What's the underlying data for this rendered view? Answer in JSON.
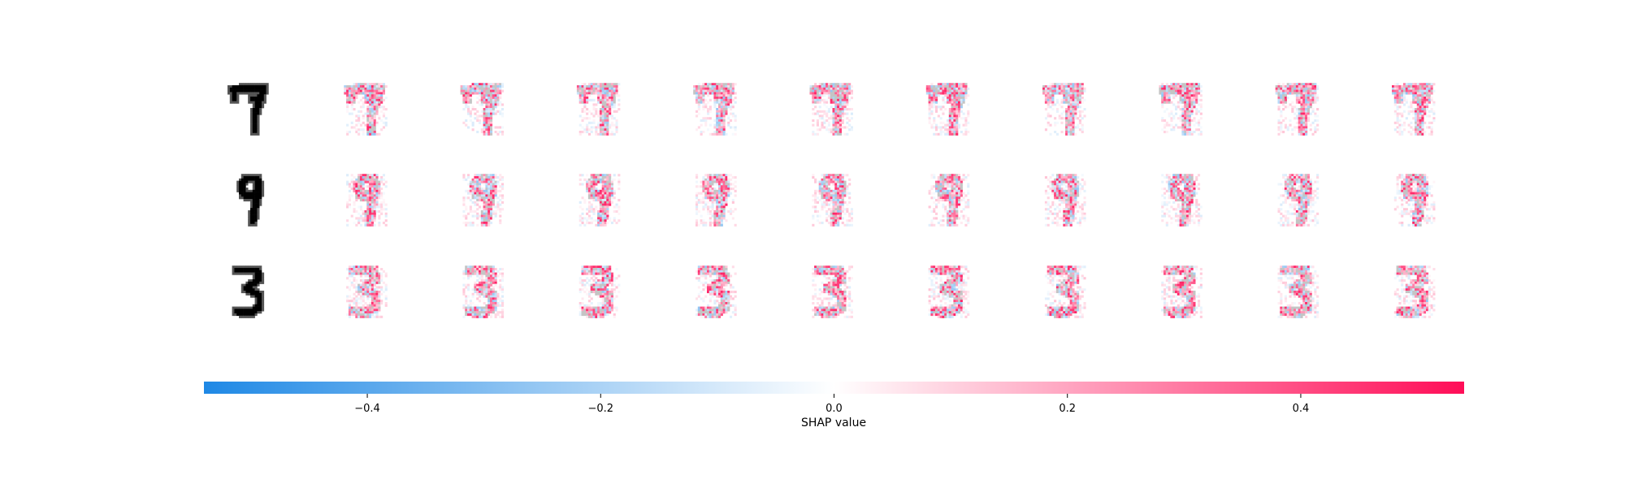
{
  "chart_data": {
    "type": "heatmap",
    "title": "",
    "rows": [
      {
        "digit": "7",
        "input_color": "#000000"
      },
      {
        "digit": "9",
        "input_color": "#000000"
      },
      {
        "digit": "3",
        "input_color": "#000000"
      }
    ],
    "explanation_columns": 10,
    "colorbar": {
      "label": "SHAP value",
      "range": [
        -0.54,
        0.54
      ],
      "ticks": [
        {
          "value": -0.4,
          "label": "−0.4"
        },
        {
          "value": -0.2,
          "label": "−0.2"
        },
        {
          "value": 0.0,
          "label": "0.0"
        },
        {
          "value": 0.2,
          "label": "0.2"
        },
        {
          "value": 0.4,
          "label": "0.4"
        }
      ],
      "colors": {
        "negative": "#1e88e5",
        "zero": "#ffffff",
        "positive": "#ff0d57"
      }
    }
  }
}
